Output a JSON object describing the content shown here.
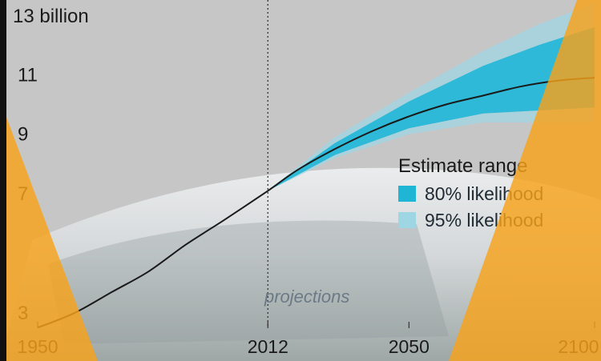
{
  "colors": {
    "background": "#c9c9c9",
    "line": "#1a1a1a",
    "band80": "#1fb6d6",
    "band95": "#9fd6e4",
    "overlay": "#f6a21a"
  },
  "chart_data": {
    "type": "line",
    "title": "",
    "xlabel": "",
    "ylabel": "",
    "y_unit_label": "13 billion",
    "xlim": [
      1950,
      2100
    ],
    "ylim": [
      2,
      13
    ],
    "x_ticks": [
      1950,
      2012,
      2050,
      2100
    ],
    "x_tick_labels": [
      "1950",
      "2012",
      "2050",
      "2100"
    ],
    "y_ticks": [
      3,
      7,
      9,
      11
    ],
    "y_tick_labels": [
      "3",
      "7",
      "9",
      "11"
    ],
    "divider_x": 2012,
    "annotation": "projections",
    "series": [
      {
        "x": [
          1950,
          1960,
          1970,
          1980,
          1990,
          2000,
          2012,
          2020,
          2030,
          2040,
          2050,
          2060,
          2070,
          2080,
          2090,
          2100
        ],
        "values": [
          2.5,
          3.0,
          3.7,
          4.4,
          5.3,
          6.1,
          7.1,
          7.8,
          8.5,
          9.1,
          9.6,
          10.0,
          10.3,
          10.6,
          10.8,
          10.9
        ]
      }
    ],
    "bands": [
      {
        "name": "80% likelihood",
        "x": [
          2012,
          2030,
          2050,
          2070,
          2085,
          2100
        ],
        "low": [
          7.1,
          8.3,
          9.2,
          9.7,
          9.8,
          9.9
        ],
        "high": [
          7.1,
          8.7,
          10.1,
          11.3,
          12.0,
          12.6
        ]
      },
      {
        "name": "95% likelihood",
        "x": [
          2012,
          2030,
          2050,
          2070,
          2085,
          2100
        ],
        "low": [
          7.1,
          8.2,
          9.0,
          9.4,
          9.4,
          9.4
        ],
        "high": [
          7.1,
          8.9,
          10.4,
          11.8,
          12.7,
          13.4
        ]
      }
    ],
    "legend": {
      "title": "Estimate range",
      "position": "right",
      "items": [
        "80% likelihood",
        "95% likelihood"
      ]
    },
    "grid": false
  }
}
